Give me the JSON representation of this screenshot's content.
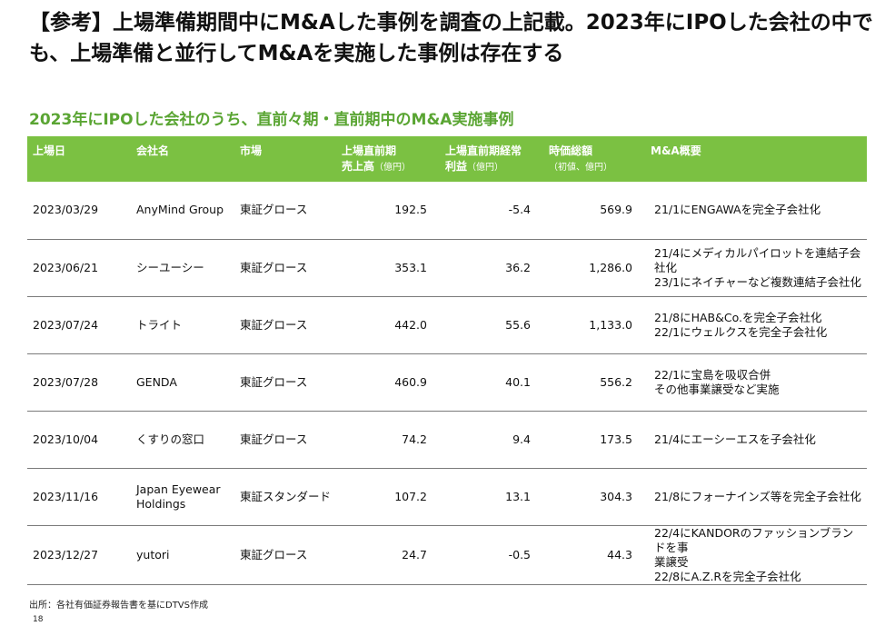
{
  "title": "【参考】上場準備期間中にM&Aした事例を調査の上記載。2023年にIPOした会社の中でも、上場準備と並行してM&Aを実施した事例は存在する",
  "subtitle": "2023年にIPOした会社のうち、直前々期・直前期中のM&A実施事例",
  "table": {
    "headers": [
      {
        "l1": "上場日",
        "l2": "",
        "unit": ""
      },
      {
        "l1": "会社名",
        "l2": "",
        "unit": ""
      },
      {
        "l1": "市場",
        "l2": "",
        "unit": ""
      },
      {
        "l1": "上場直前期",
        "l2": "売上高",
        "unit": "（億円）"
      },
      {
        "l1": "上場直前期経常",
        "l2": "利益",
        "unit": "（億円）"
      },
      {
        "l1": "時価総額",
        "l2": "",
        "unit": "（初値、億円）"
      },
      {
        "l1": "M&A概要",
        "l2": "",
        "unit": ""
      }
    ],
    "rows": [
      {
        "date": "2023/03/29",
        "company": "AnyMind Group",
        "market": "東証グロース",
        "sales": "192.5",
        "profit": "-5.4",
        "mcap": "569.9",
        "ma": [
          "21/1にENGAWAを完全子会社化"
        ]
      },
      {
        "date": "2023/06/21",
        "company": "シーユーシー",
        "market": "東証グロース",
        "sales": "353.1",
        "profit": "36.2",
        "mcap": "1,286.0",
        "ma": [
          "21/4にメディカルパイロットを連結子会社化",
          "23/1にネイチャーなど複数連結子会社化"
        ]
      },
      {
        "date": "2023/07/24",
        "company": "トライト",
        "market": "東証グロース",
        "sales": "442.0",
        "profit": "55.6",
        "mcap": "1,133.0",
        "ma": [
          "21/8にHAB&Co.を完全子会社化",
          "22/1にウェルクスを完全子会社化"
        ]
      },
      {
        "date": "2023/07/28",
        "company": "GENDA",
        "market": "東証グロース",
        "sales": "460.9",
        "profit": "40.1",
        "mcap": "556.2",
        "ma": [
          "22/1に宝島を吸収合併",
          "その他事業譲受など実施"
        ]
      },
      {
        "date": "2023/10/04",
        "company": "くすりの窓口",
        "market": "東証グロース",
        "sales": "74.2",
        "profit": "9.4",
        "mcap": "173.5",
        "ma": [
          "21/4にエーシーエスを子会社化"
        ]
      },
      {
        "date": "2023/11/16",
        "company": [
          "Japan Eyewear",
          "Holdings"
        ],
        "market": "東証スタンダード",
        "sales": "107.2",
        "profit": "13.1",
        "mcap": "304.3",
        "ma": [
          "21/8にフォーナインズ等を完全子会社化"
        ]
      },
      {
        "date": "2023/12/27",
        "company": "yutori",
        "market": "東証グロース",
        "sales": "24.7",
        "profit": "-0.5",
        "mcap": "44.3",
        "ma": [
          "22/4にKANDORのファッションブランドを事",
          "業譲受",
          "22/8にA.Z.Rを完全子会社化"
        ]
      }
    ]
  },
  "source": "出所：各社有価証券報告書を基にDTVS作成",
  "page_number": "18"
}
